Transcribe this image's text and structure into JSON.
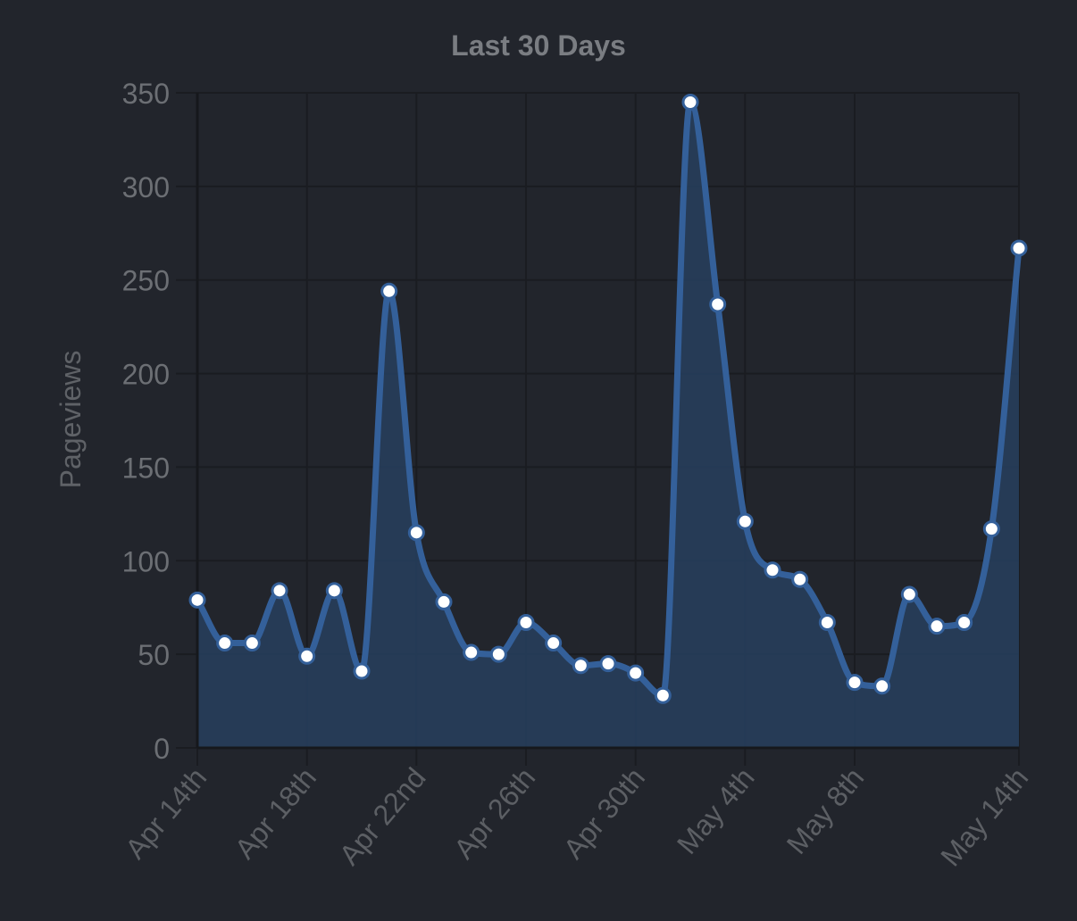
{
  "chart_data": {
    "type": "area",
    "title": "Last 30 Days",
    "ylabel": "Pageviews",
    "xlabel": "",
    "ylim": [
      0,
      350
    ],
    "y_ticks": [
      "0",
      "50",
      "100",
      "150",
      "200",
      "250",
      "300",
      "350"
    ],
    "x_tick_labels": [
      "Apr 14th",
      "Apr 18th",
      "Apr 22nd",
      "Apr 26th",
      "Apr 30th",
      "May 4th",
      "May 8th",
      "May 14th"
    ],
    "x": [
      "Apr 14",
      "Apr 15",
      "Apr 16",
      "Apr 17",
      "Apr 18",
      "Apr 19",
      "Apr 20",
      "Apr 21",
      "Apr 22",
      "Apr 23",
      "Apr 24",
      "Apr 25",
      "Apr 26",
      "Apr 27",
      "Apr 28",
      "Apr 29",
      "Apr 30",
      "May 1",
      "May 2",
      "May 3",
      "May 4",
      "May 5",
      "May 6",
      "May 7",
      "May 8",
      "May 9",
      "May 10",
      "May 11",
      "May 12",
      "May 13",
      "May 14"
    ],
    "series": [
      {
        "values": [
          79,
          56,
          56,
          84,
          49,
          84,
          41,
          244,
          115,
          78,
          51,
          50,
          67,
          56,
          44,
          45,
          40,
          28,
          345,
          237,
          121,
          95,
          90,
          67,
          35,
          33,
          82,
          65,
          67,
          117,
          267
        ]
      }
    ],
    "grid": true,
    "colors": {
      "line": "#34609a",
      "fill": "#273f5e",
      "point_fill": "#ffffff",
      "point_stroke": "#34609a",
      "background": "#22252c"
    }
  }
}
